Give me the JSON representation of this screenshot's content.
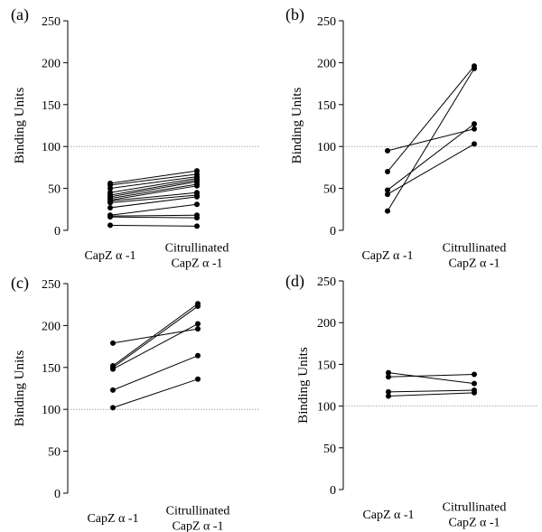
{
  "chart_data": [
    {
      "type": "line",
      "panel": "(a)",
      "ylabel": "Binding Units",
      "ylim": [
        0,
        250
      ],
      "yticks": [
        0,
        50,
        100,
        150,
        200,
        250
      ],
      "reference_line": 100,
      "categories": [
        {
          "lines": [
            "CapZ α -1"
          ]
        },
        {
          "lines": [
            "Citrullinated",
            "CapZ α -1"
          ]
        }
      ],
      "pairs": [
        [
          56,
          71
        ],
        [
          54,
          67
        ],
        [
          50,
          64
        ],
        [
          45,
          62
        ],
        [
          42,
          60
        ],
        [
          40,
          58
        ],
        [
          38,
          55
        ],
        [
          36,
          53
        ],
        [
          35,
          45
        ],
        [
          33,
          42
        ],
        [
          27,
          40
        ],
        [
          18,
          31
        ],
        [
          17,
          18
        ],
        [
          16,
          15
        ],
        [
          6,
          5
        ]
      ]
    },
    {
      "type": "line",
      "panel": "(b)",
      "ylabel": "Binding Units",
      "ylim": [
        0,
        250
      ],
      "yticks": [
        0,
        50,
        100,
        150,
        200,
        250
      ],
      "reference_line": 100,
      "categories": [
        {
          "lines": [
            "CapZ α -1"
          ]
        },
        {
          "lines": [
            "Citrullinated",
            "CapZ α -1"
          ]
        }
      ],
      "pairs": [
        [
          95,
          121
        ],
        [
          70,
          196
        ],
        [
          48,
          127
        ],
        [
          43,
          103
        ],
        [
          23,
          193
        ]
      ]
    },
    {
      "type": "line",
      "panel": "(c)",
      "ylabel": "Binding Units",
      "ylim": [
        0,
        250
      ],
      "yticks": [
        0,
        50,
        100,
        150,
        200,
        250
      ],
      "reference_line": 100,
      "categories": [
        {
          "lines": [
            "CapZ α -1"
          ]
        },
        {
          "lines": [
            "Citrullinated",
            "CapZ α -1"
          ]
        }
      ],
      "pairs": [
        [
          179,
          196
        ],
        [
          152,
          226
        ],
        [
          150,
          223
        ],
        [
          148,
          202
        ],
        [
          123,
          164
        ],
        [
          102,
          136
        ]
      ]
    },
    {
      "type": "line",
      "panel": "(d)",
      "ylabel": "Binding Units",
      "ylim": [
        0,
        250
      ],
      "yticks": [
        0,
        50,
        100,
        150,
        200,
        250
      ],
      "reference_line": 100,
      "categories": [
        {
          "lines": [
            "CapZ α -1"
          ]
        },
        {
          "lines": [
            "Citrullinated",
            "CapZ α -1"
          ]
        }
      ],
      "pairs": [
        [
          140,
          127
        ],
        [
          135,
          138
        ],
        [
          117,
          119
        ],
        [
          112,
          116
        ]
      ]
    }
  ]
}
